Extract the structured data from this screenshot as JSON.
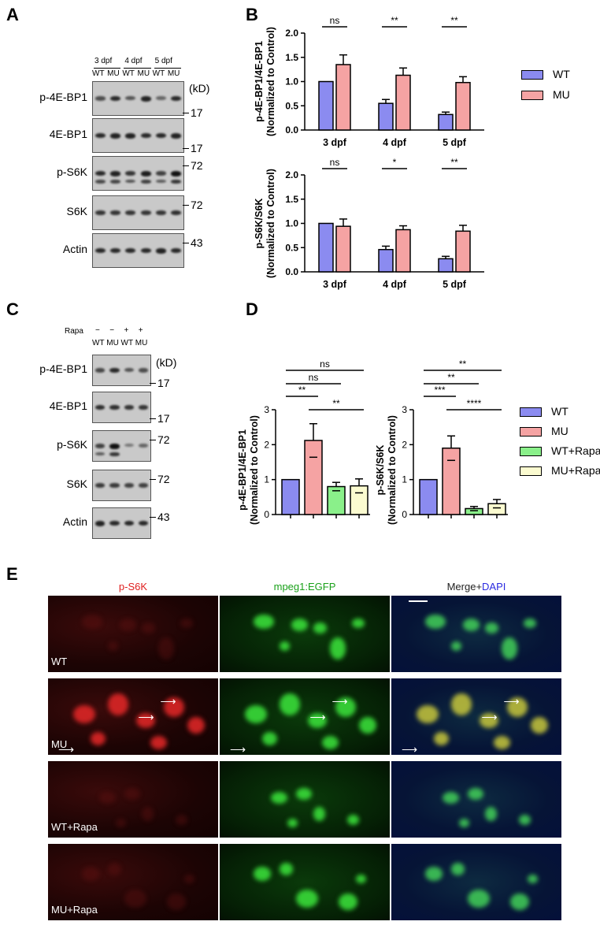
{
  "panels": {
    "A": "A",
    "B": "B",
    "C": "C",
    "D": "D",
    "E": "E"
  },
  "blotA": {
    "lanes": [
      {
        "day": "3 dpf",
        "g1": "WT",
        "g2": "MU"
      },
      {
        "day": "4 dpf",
        "g1": "WT",
        "g2": "MU"
      },
      {
        "day": "5 dpf",
        "g1": "WT",
        "g2": "MU"
      }
    ],
    "kd": "(kD)",
    "rows": [
      {
        "label": "p-4E-BP1",
        "mw": "17"
      },
      {
        "label": "4E-BP1",
        "mw": "17"
      },
      {
        "label": "p-S6K",
        "mw": "72"
      },
      {
        "label": "S6K",
        "mw": "72"
      },
      {
        "label": "Actin",
        "mw": "43"
      }
    ]
  },
  "blotC": {
    "rapa_label": "Rapa",
    "rapa_signs": [
      "−",
      "−",
      "+",
      "+"
    ],
    "groups": [
      "WT",
      "MU",
      "WT",
      "MU"
    ],
    "kd": "(kD)",
    "rows": [
      {
        "label": "p-4E-BP1",
        "mw": "17"
      },
      {
        "label": "4E-BP1",
        "mw": "17"
      },
      {
        "label": "p-S6K",
        "mw": "72"
      },
      {
        "label": "S6K",
        "mw": "72"
      },
      {
        "label": "Actin",
        "mw": "43"
      }
    ]
  },
  "legendB": [
    {
      "name": "WT",
      "color": "#8b8bf0"
    },
    {
      "name": "MU",
      "color": "#f5a3a3"
    }
  ],
  "legendD": [
    {
      "name": "WT",
      "color": "#8b8bf0"
    },
    {
      "name": "MU",
      "color": "#f5a3a3"
    },
    {
      "name": "WT+Rapa",
      "color": "#8af08a"
    },
    {
      "name": "MU+Rapa",
      "color": "#fbfbd0"
    }
  ],
  "chart_data": [
    {
      "type": "bar",
      "id": "B-top",
      "categories": [
        "3 dpf",
        "4 dpf",
        "5 dpf"
      ],
      "series": [
        {
          "name": "WT",
          "values": [
            1.0,
            0.55,
            0.32
          ],
          "errors": [
            0,
            0.08,
            0.05
          ]
        },
        {
          "name": "MU",
          "values": [
            1.35,
            1.13,
            0.98
          ],
          "errors": [
            0.2,
            0.15,
            0.12
          ]
        }
      ],
      "ylabel": "p-4E-BP1/4E-BP1\n(Normalized to Control)",
      "ylim": [
        0,
        2.0
      ],
      "yticks": [
        "0.0",
        "0.5",
        "1.0",
        "1.5",
        "2.0"
      ],
      "significance": [
        "ns",
        "**",
        "**"
      ]
    },
    {
      "type": "bar",
      "id": "B-bottom",
      "categories": [
        "3 dpf",
        "4 dpf",
        "5 dpf"
      ],
      "series": [
        {
          "name": "WT",
          "values": [
            1.0,
            0.46,
            0.27
          ],
          "errors": [
            0,
            0.07,
            0.05
          ]
        },
        {
          "name": "MU",
          "values": [
            0.94,
            0.87,
            0.84
          ],
          "errors": [
            0.15,
            0.08,
            0.12
          ]
        }
      ],
      "ylabel": "p-S6K/S6K\n(Normalized to Control)",
      "ylim": [
        0,
        2.0
      ],
      "yticks": [
        "0.0",
        "0.5",
        "1.0",
        "1.5",
        "2.0"
      ],
      "significance": [
        "ns",
        "*",
        "**"
      ]
    },
    {
      "type": "bar",
      "id": "D-left",
      "categories": [
        "WT",
        "MU",
        "WT+Rapa",
        "MU+Rapa"
      ],
      "values": [
        1.0,
        2.12,
        0.8,
        0.82
      ],
      "errors": [
        0,
        0.48,
        0.12,
        0.2
      ],
      "ylabel": "p-4E-BP1/4E-BP1\n(Normalized to Control)",
      "ylim": [
        0,
        3
      ],
      "yticks": [
        "0",
        "1",
        "2",
        "3"
      ],
      "comparisons": [
        {
          "pair": [
            0,
            3
          ],
          "label": "ns"
        },
        {
          "pair": [
            0,
            2
          ],
          "label": "ns"
        },
        {
          "pair": [
            0,
            1
          ],
          "label": "**"
        },
        {
          "pair": [
            1,
            3
          ],
          "label": "**"
        }
      ]
    },
    {
      "type": "bar",
      "id": "D-right",
      "categories": [
        "WT",
        "MU",
        "WT+Rapa",
        "MU+Rapa"
      ],
      "values": [
        1.0,
        1.9,
        0.17,
        0.31
      ],
      "errors": [
        0,
        0.35,
        0.06,
        0.12
      ],
      "ylabel": "p-S6K/S6K\n(Normalized to Control)",
      "ylim": [
        0,
        3
      ],
      "yticks": [
        "0",
        "1",
        "2",
        "3"
      ],
      "comparisons": [
        {
          "pair": [
            0,
            3
          ],
          "label": "**"
        },
        {
          "pair": [
            0,
            2
          ],
          "label": "**"
        },
        {
          "pair": [
            0,
            1
          ],
          "label": "***"
        },
        {
          "pair": [
            1,
            3
          ],
          "label": "****"
        }
      ]
    }
  ],
  "imaging": {
    "columns": [
      {
        "text": "p-S6K",
        "color": "#e02020"
      },
      {
        "text": "mpeg1:EGFP",
        "color": "#1aa11a"
      },
      {
        "text_a": "Merge+",
        "text_b": "DAPI",
        "color_a": "#222",
        "color_b": "#2a2ae0"
      }
    ],
    "rows": [
      "WT",
      "MU",
      "WT+Rapa",
      "MU+Rapa"
    ]
  }
}
